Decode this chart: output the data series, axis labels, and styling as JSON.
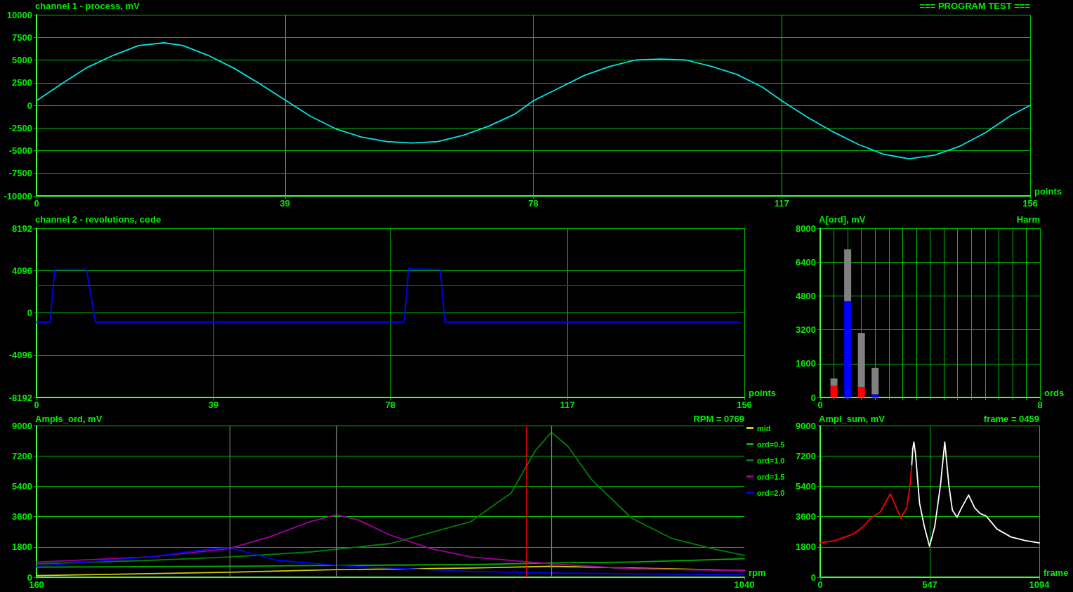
{
  "chart_data": [
    {
      "type": "line",
      "title": "channel 1 - process, mV",
      "xlabel": "points",
      "annotations": [
        "=== PROGRAM TEST ==="
      ],
      "xlim": [
        0,
        156
      ],
      "xticks": [
        0,
        39,
        78,
        117,
        156
      ],
      "ylim": [
        -10000,
        10000
      ],
      "yticks": [
        -10000,
        -7500,
        -5000,
        -2500,
        0,
        2500,
        5000,
        7500,
        10000
      ],
      "grid": true,
      "marker": "none",
      "series": [
        {
          "color": "#00e5e5",
          "x": [
            0,
            4,
            8,
            12,
            16,
            20,
            23,
            27,
            31,
            35,
            39,
            43,
            47,
            51,
            55,
            59,
            63,
            67,
            71,
            75,
            78,
            82,
            86,
            90,
            94,
            98,
            102,
            106,
            110,
            114,
            117,
            121,
            125,
            129,
            133,
            137,
            141,
            145,
            149,
            153,
            156
          ],
          "values": [
            500,
            2400,
            4200,
            5500,
            6600,
            6900,
            6600,
            5500,
            4100,
            2400,
            600,
            -1200,
            -2600,
            -3500,
            -4000,
            -4150,
            -4000,
            -3300,
            -2300,
            -1000,
            500,
            1900,
            3300,
            4300,
            5000,
            5100,
            5000,
            4300,
            3400,
            2000,
            500,
            -1300,
            -2900,
            -4300,
            -5400,
            -5900,
            -5500,
            -4500,
            -3000,
            -1100,
            0
          ]
        }
      ]
    },
    {
      "type": "line",
      "title": "channel 2 - revolutions, code",
      "xlabel": "points",
      "xlim": [
        0,
        156
      ],
      "xticks": [
        0,
        39,
        78,
        117,
        156
      ],
      "ylim": [
        -8192,
        8192
      ],
      "yticks": [
        -8192,
        -4096,
        0,
        4096,
        8192
      ],
      "grid": true,
      "marker": "none",
      "ref_lines": [
        {
          "axis": "y",
          "value": 2700,
          "color": "#b00000"
        }
      ],
      "series": [
        {
          "color": "#0000ff",
          "x": [
            0,
            3,
            4,
            11,
            13,
            81,
            82,
            89,
            90,
            155
          ],
          "values": [
            -900,
            -900,
            4200,
            4200,
            -900,
            -900,
            4250,
            4200,
            -900,
            -900
          ]
        }
      ]
    },
    {
      "type": "bar",
      "stacked": true,
      "title": "A[ord], mV",
      "xlabel": "ords",
      "annotations": [
        "Harm"
      ],
      "xlim": [
        0,
        8
      ],
      "xticks": [
        0,
        {
          "value": 0.5,
          "label": null
        },
        {
          "value": 1,
          "label": null
        },
        {
          "value": 1.5,
          "label": null
        },
        {
          "value": 2,
          "label": null
        },
        {
          "value": 2.5,
          "label": null
        },
        {
          "value": 3,
          "label": null
        },
        {
          "value": 3.5,
          "label": null
        },
        {
          "value": 4,
          "label": null
        },
        {
          "value": 4.5,
          "label": null
        },
        {
          "value": 5,
          "label": null
        },
        {
          "value": 5.5,
          "label": null
        },
        {
          "value": 6,
          "label": null
        },
        {
          "value": 6.5,
          "label": null
        },
        {
          "value": 7,
          "label": null
        },
        {
          "value": 7.5,
          "label": null
        },
        8
      ],
      "ylim": [
        0,
        8000
      ],
      "yticks": [
        0,
        1600,
        3200,
        4800,
        6400,
        8000
      ],
      "grid": true,
      "series": [
        {
          "x": [
            0.5,
            1,
            1.5,
            2
          ],
          "values": [
            550,
            4550,
            500,
            150
          ],
          "colors": [
            "#ff0000",
            "#0000ff",
            "#ff0000",
            "#0000ff"
          ]
        },
        {
          "x": [
            0.5,
            1,
            1.5,
            2
          ],
          "values": [
            350,
            2450,
            2550,
            1250
          ],
          "color": "#808080"
        }
      ]
    },
    {
      "type": "line",
      "title": "Ampls_ord, mV",
      "xlabel": "rpm",
      "annotations": [
        "RPM = 0769"
      ],
      "xlim": [
        160,
        1040
      ],
      "xticks": [
        160,
        1040
      ],
      "ylim": [
        0,
        9000
      ],
      "yticks": [
        0,
        1800,
        3600,
        5400,
        7200,
        9000
      ],
      "grid": "y",
      "marker": "none",
      "legend": "right",
      "ref_lines": [
        {
          "axis": "x",
          "value": 400,
          "color": "#808080"
        },
        {
          "axis": "x",
          "value": 533,
          "color": "#808080"
        },
        {
          "axis": "x",
          "value": 800,
          "color": "#808080"
        },
        {
          "axis": "x",
          "value": 769,
          "color": "#ff0000"
        }
      ],
      "series": [
        {
          "name": "mid",
          "color": "#d0d000",
          "x": [
            160,
            400,
            533,
            700,
            800,
            900,
            1040
          ],
          "values": [
            100,
            300,
            450,
            550,
            650,
            550,
            400
          ]
        },
        {
          "name": "ord=0.5",
          "color": "#00b000",
          "x": [
            160,
            400,
            533,
            700,
            800,
            900,
            1040
          ],
          "values": [
            600,
            650,
            700,
            750,
            850,
            900,
            1100
          ]
        },
        {
          "name": "ord=1.0",
          "color": "#008000",
          "x": [
            160,
            300,
            400,
            500,
            600,
            700,
            750,
            780,
            800,
            820,
            850,
            900,
            950,
            1000,
            1040
          ],
          "values": [
            800,
            1000,
            1200,
            1500,
            2000,
            3300,
            5000,
            7500,
            8600,
            7800,
            5800,
            3500,
            2300,
            1700,
            1300
          ]
        },
        {
          "name": "ord=1.5",
          "color": "#a000a0",
          "x": [
            160,
            300,
            400,
            450,
            500,
            533,
            560,
            600,
            650,
            700,
            800,
            900,
            1040
          ],
          "values": [
            900,
            1200,
            1700,
            2400,
            3300,
            3700,
            3400,
            2500,
            1700,
            1200,
            800,
            500,
            400
          ]
        },
        {
          "name": "ord=2.0",
          "color": "#0000ff",
          "x": [
            160,
            300,
            380,
            400,
            420,
            460,
            533,
            600,
            700,
            800,
            900,
            1040
          ],
          "values": [
            650,
            1200,
            1700,
            1750,
            1500,
            1000,
            700,
            550,
            350,
            250,
            200,
            150
          ]
        }
      ]
    },
    {
      "type": "line",
      "title": "Ampl_sum, mV",
      "xlabel": "frame",
      "annotations": [
        "frame = 0459"
      ],
      "xlim": [
        0,
        1094
      ],
      "xticks": [
        0,
        547,
        1094
      ],
      "ylim": [
        0,
        9000
      ],
      "yticks": [
        0,
        1800,
        3600,
        5400,
        7200,
        9000
      ],
      "grid": true,
      "marker": "none",
      "series": [
        {
          "color": "#ffffff",
          "x": [
            457,
            462,
            468,
            476,
            496,
            520,
            546,
            572,
            601,
            622,
            642,
            660,
            683,
            706,
            741,
            771,
            800,
            829,
            882,
            952,
            1022,
            1094
          ],
          "values": [
            6640,
            7600,
            8030,
            7310,
            4400,
            3010,
            1830,
            3010,
            5510,
            8030,
            5510,
            3980,
            3560,
            4120,
            4880,
            4120,
            3770,
            3630,
            2870,
            2390,
            2180,
            2040
          ]
        },
        {
          "color": "#ff0000",
          "x": [
            0,
            76,
            169,
            216,
            251,
            298,
            350,
            403,
            432,
            449,
            457
          ],
          "values": [
            2040,
            2180,
            2590,
            3010,
            3500,
            3840,
            4950,
            3500,
            4120,
            5510,
            6640
          ]
        }
      ]
    }
  ]
}
